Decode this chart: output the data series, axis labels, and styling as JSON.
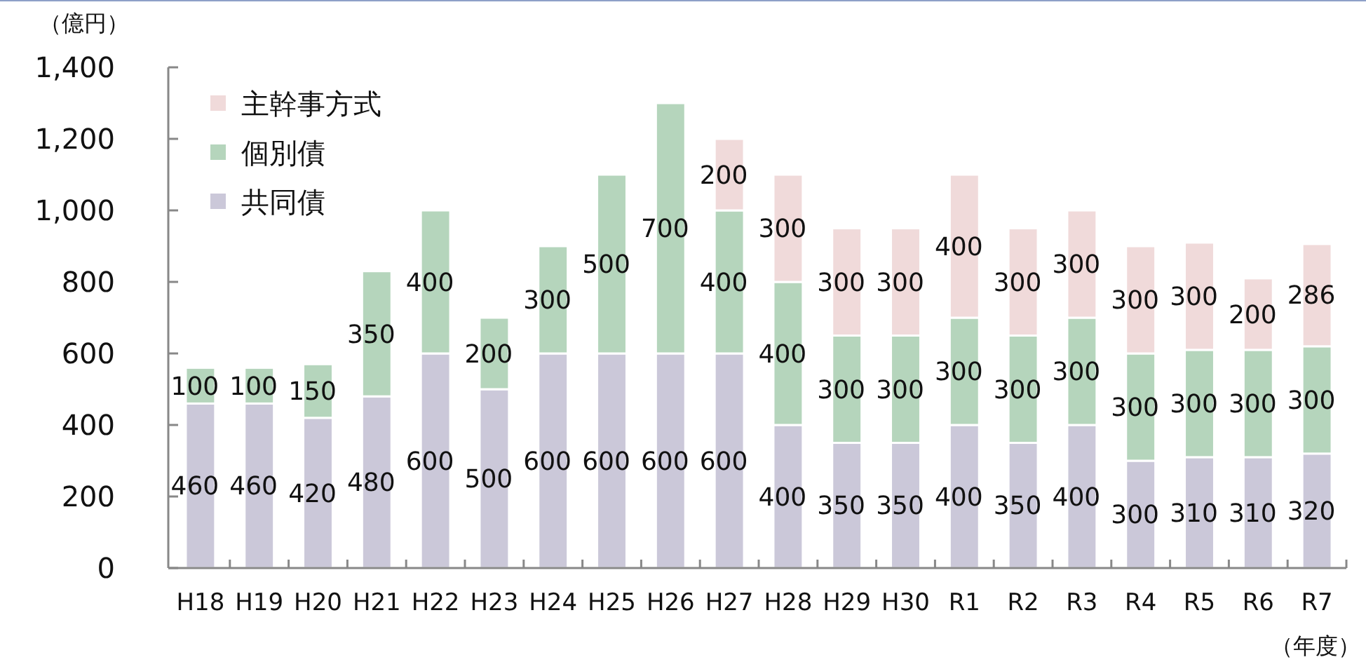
{
  "chart_data": {
    "type": "bar",
    "stacked": true,
    "ylabel": "（億円）",
    "xlabel": "（年度）",
    "categories": [
      "H18",
      "H19",
      "H20",
      "H21",
      "H22",
      "H23",
      "H24",
      "H25",
      "H26",
      "H27",
      "H28",
      "H29",
      "H30",
      "R1",
      "R2",
      "R3",
      "R4",
      "R5",
      "R6",
      "R7"
    ],
    "series": [
      {
        "name": "共同債",
        "color": "#cbc8d9",
        "values": [
          460,
          460,
          420,
          480,
          600,
          500,
          600,
          600,
          600,
          600,
          400,
          350,
          350,
          400,
          350,
          400,
          300,
          310,
          310,
          320
        ]
      },
      {
        "name": "個別債",
        "color": "#b5d5bc",
        "values": [
          100,
          100,
          150,
          350,
          400,
          200,
          300,
          500,
          700,
          400,
          400,
          300,
          300,
          300,
          300,
          300,
          300,
          300,
          300,
          300
        ]
      },
      {
        "name": "主幹事方式",
        "color": "#f0dada",
        "values": [
          null,
          null,
          null,
          null,
          null,
          null,
          null,
          null,
          null,
          200,
          300,
          300,
          300,
          400,
          300,
          300,
          300,
          300,
          200,
          286
        ]
      }
    ],
    "ylim": [
      0,
      1400
    ],
    "yticks": [
      0,
      {
        "value": 200,
        "label": "200"
      },
      {
        "value": 400,
        "label": "400"
      },
      {
        "value": 600,
        "label": "600"
      },
      {
        "value": 800,
        "label": "800"
      },
      {
        "value": 1000,
        "label": "1,000"
      },
      {
        "value": 1200,
        "label": "1,200"
      },
      {
        "value": 1400,
        "label": "1,400"
      }
    ],
    "data_labels": true,
    "legend": "top left",
    "grid": false
  }
}
